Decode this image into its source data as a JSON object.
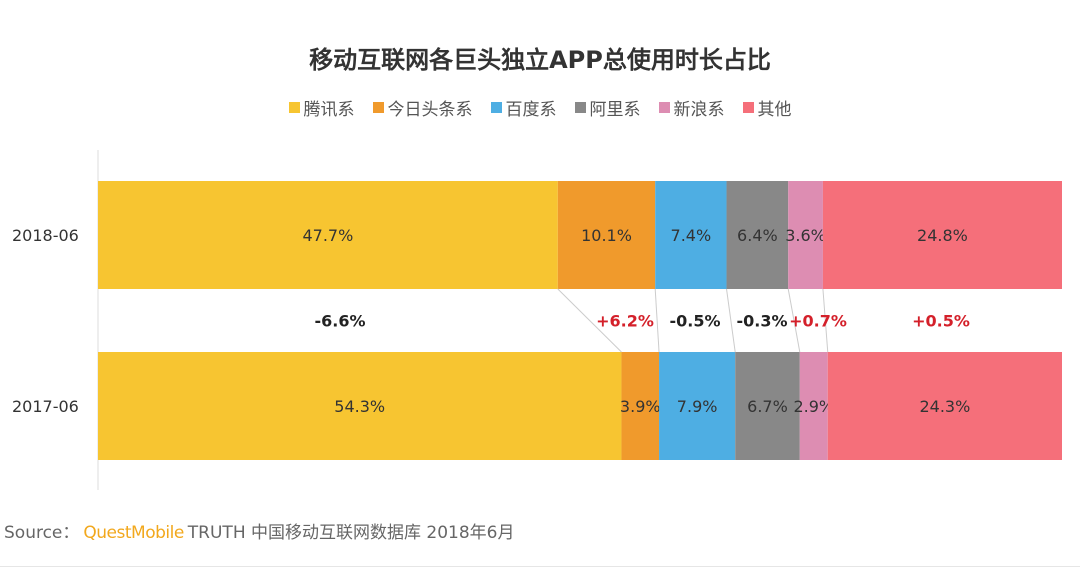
{
  "chart_data": {
    "type": "bar",
    "orientation": "horizontal",
    "stacked": "100%",
    "title": "移动互联网各巨头独立APP总使用时长占比",
    "categories": [
      "2018-06",
      "2017-06"
    ],
    "series": [
      {
        "name": "腾讯系",
        "color": "#f7c531",
        "values": [
          47.7,
          54.3
        ],
        "labels": [
          "47.7%",
          "54.3%"
        ]
      },
      {
        "name": "今日头条系",
        "color": "#f09a2c",
        "values": [
          10.1,
          3.9
        ],
        "labels": [
          "10.1%",
          "3.9%"
        ]
      },
      {
        "name": "百度系",
        "color": "#4eaee3",
        "values": [
          7.4,
          7.9
        ],
        "labels": [
          "7.4%",
          "7.9%"
        ]
      },
      {
        "name": "阿里系",
        "color": "#888888",
        "values": [
          6.4,
          6.7
        ],
        "labels": [
          "6.4%",
          "6.7%"
        ]
      },
      {
        "name": "新浪系",
        "color": "#dd8db2",
        "values": [
          3.6,
          2.9
        ],
        "labels": [
          "3.6%",
          "2.9%"
        ]
      },
      {
        "name": "其他",
        "color": "#f56f7a",
        "values": [
          24.8,
          24.3
        ],
        "labels": [
          "24.8%",
          "24.3%"
        ]
      }
    ],
    "changes": [
      "-6.6%",
      "+6.2%",
      "-0.5%",
      "-0.3%",
      "+0.7%",
      "+0.5%"
    ],
    "change_colors": [
      "#222222",
      "#d4202a",
      "#222222",
      "#222222",
      "#d4202a",
      "#d4202a"
    ],
    "legend_position": "top"
  },
  "source": {
    "label": "Source：",
    "brand": "QuestMobile",
    "text": "TRUTH 中国移动互联网数据库 2018年6月"
  }
}
